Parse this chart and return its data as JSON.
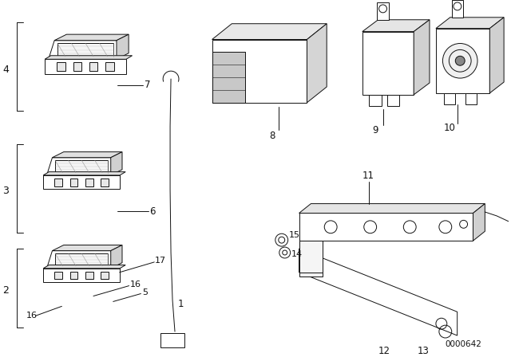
{
  "bg_color": "#ffffff",
  "line_color": "#111111",
  "part_number_code": "0000642",
  "figsize": [
    6.4,
    4.48
  ],
  "dpi": 100,
  "font": "DejaVu Sans",
  "lw": 0.7
}
